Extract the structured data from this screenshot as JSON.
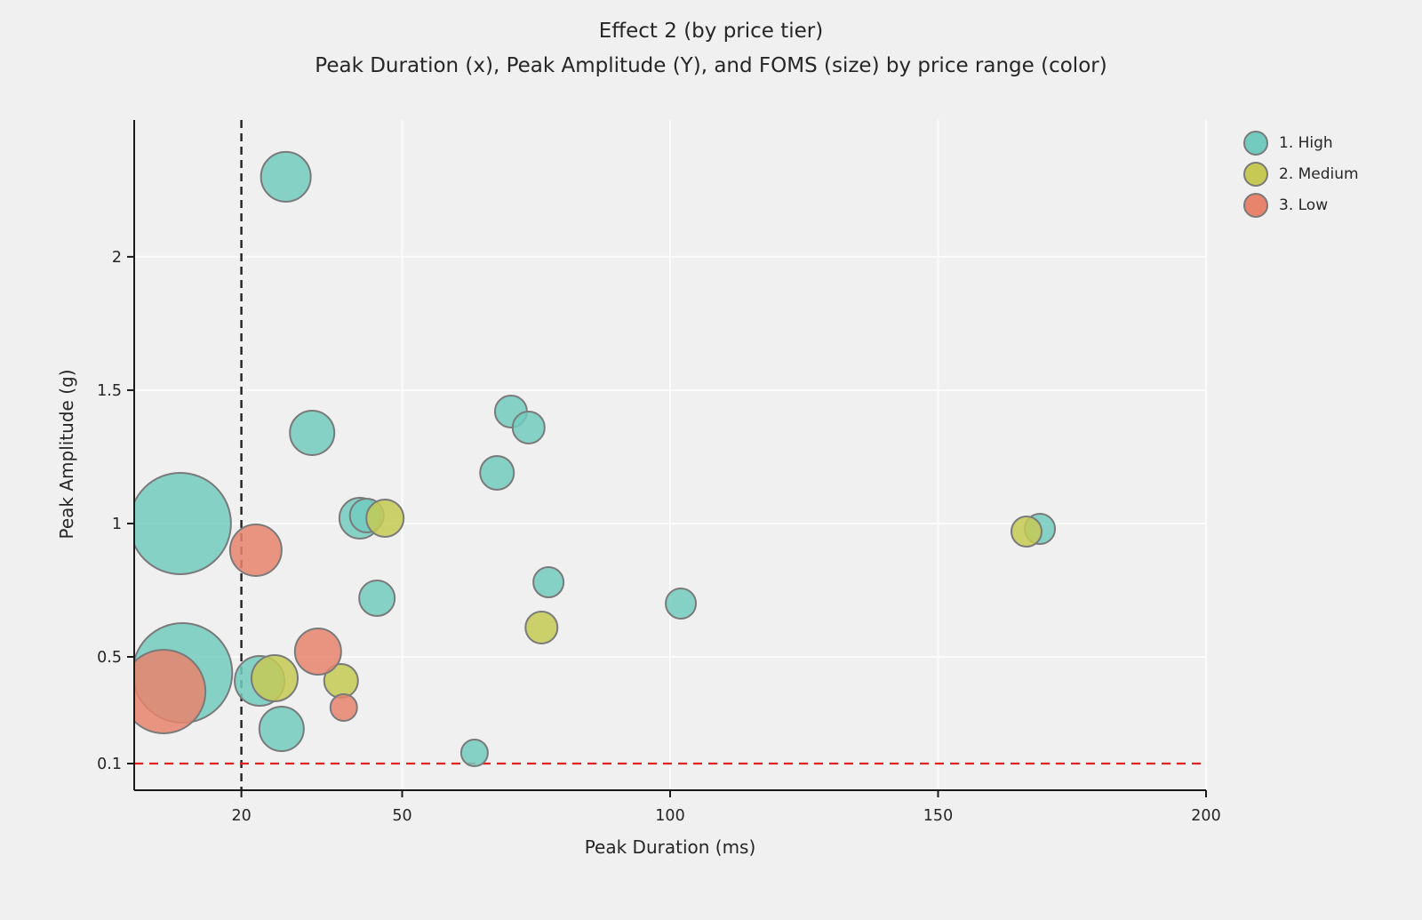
{
  "chart": {
    "title": "Effect 2 (by price tier)",
    "subtitle": "Peak Duration (x), Peak Amplitude (Y), and FOMS (size) by price range (color)"
  },
  "legend": {
    "items": [
      {
        "label": "1. High",
        "color": "#72cbbe"
      },
      {
        "label": "2. Medium",
        "color": "#c6ca54"
      },
      {
        "label": "3. Low",
        "color": "#e8846c"
      }
    ]
  },
  "chart_data": {
    "type": "scatter",
    "subtype": "bubble",
    "title": "Effect 2 (by price tier)",
    "subtitle": "Peak Duration (x), Peak Amplitude (Y), and FOMS (size) by price range (color)",
    "xlabel": "Peak Duration (ms)",
    "ylabel": "Peak Amplitude (g)",
    "xlim": [
      0,
      200
    ],
    "ylim": [
      0,
      2.513
    ],
    "xticks": [
      20,
      50,
      100,
      150,
      200
    ],
    "yticks": [
      0.1,
      0.5,
      1,
      1.5,
      2
    ],
    "grid_x": [
      50,
      100,
      150,
      200
    ],
    "grid_y": [
      0.5,
      1,
      1.5,
      2
    ],
    "grid_on": true,
    "grid_color": "#fbfbfb",
    "background": "#f0f0f0",
    "bubble_stroke": "#7a7a7a",
    "bubble_opacity": 0.85,
    "legend_position": "upper-right-outside",
    "size_encoding": "FOMS (bubble radius in px)",
    "reference_lines": {
      "vline": {
        "x": 20,
        "color": "#222222",
        "style": "dashed"
      },
      "hline": {
        "y": 0.1,
        "color": "#e32222",
        "style": "dashed"
      }
    },
    "series": [
      {
        "name": "1. High",
        "color": "#72cbbe",
        "points": [
          {
            "x": 28.3,
            "y": 2.3,
            "r": 28
          },
          {
            "x": 33.2,
            "y": 1.34,
            "r": 25
          },
          {
            "x": 70.3,
            "y": 1.42,
            "r": 18
          },
          {
            "x": 73.6,
            "y": 1.36,
            "r": 18
          },
          {
            "x": 67.7,
            "y": 1.19,
            "r": 19
          },
          {
            "x": 8.6,
            "y": 1.0,
            "r": 57
          },
          {
            "x": 42.1,
            "y": 1.02,
            "r": 23
          },
          {
            "x": 43.4,
            "y": 1.03,
            "r": 19
          },
          {
            "x": 77.3,
            "y": 0.78,
            "r": 17
          },
          {
            "x": 45.3,
            "y": 0.72,
            "r": 20
          },
          {
            "x": 102.0,
            "y": 0.7,
            "r": 17
          },
          {
            "x": 9.0,
            "y": 0.44,
            "r": 56
          },
          {
            "x": 23.4,
            "y": 0.41,
            "r": 28
          },
          {
            "x": 27.5,
            "y": 0.23,
            "r": 25
          },
          {
            "x": 63.5,
            "y": 0.14,
            "r": 15
          },
          {
            "x": 169.0,
            "y": 0.98,
            "r": 17
          }
        ]
      },
      {
        "name": "2. Medium",
        "color": "#c6ca54",
        "points": [
          {
            "x": 46.8,
            "y": 1.02,
            "r": 21
          },
          {
            "x": 76.0,
            "y": 0.61,
            "r": 18
          },
          {
            "x": 26.2,
            "y": 0.42,
            "r": 26
          },
          {
            "x": 38.6,
            "y": 0.41,
            "r": 19
          },
          {
            "x": 166.5,
            "y": 0.97,
            "r": 17
          }
        ]
      },
      {
        "name": "3. Low",
        "color": "#e8846c",
        "points": [
          {
            "x": 22.7,
            "y": 0.9,
            "r": 29
          },
          {
            "x": 34.3,
            "y": 0.52,
            "r": 26
          },
          {
            "x": 5.5,
            "y": 0.37,
            "r": 47
          },
          {
            "x": 39.1,
            "y": 0.31,
            "r": 15
          }
        ]
      }
    ]
  }
}
